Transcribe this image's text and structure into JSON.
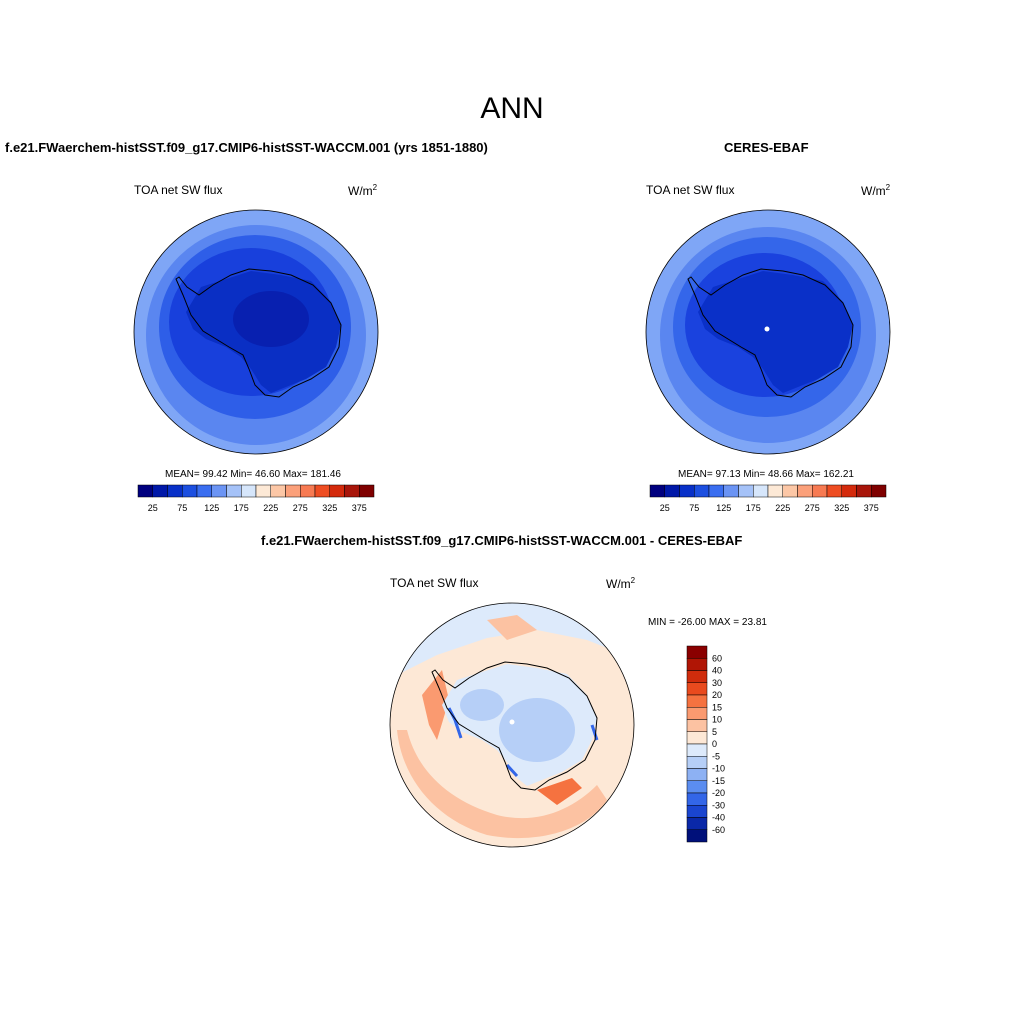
{
  "page": {
    "title": "ANN"
  },
  "panels": [
    {
      "title": "f.e21.FWaerchem-histSST.f09_g17.CMIP6-histSST-WACCM.001 (yrs 1851-1880)",
      "variable": "TOA net SW flux",
      "units": "W/m",
      "units_sup": "2",
      "stats": "MEAN=  99.42  Min=  46.60  Max= 181.46",
      "colorbar": {
        "colors": [
          "#00007f",
          "#0018a8",
          "#0830c8",
          "#1c4fe0",
          "#3a6ef0",
          "#6b94f4",
          "#a5c2f8",
          "#d6e6fb",
          "#fde9d6",
          "#fcc7a6",
          "#fba07a",
          "#f77a52",
          "#ee4d22",
          "#d42a0c",
          "#a8150a",
          "#7f0000"
        ],
        "labels": [
          "25",
          "75",
          "125",
          "175",
          "225",
          "275",
          "325",
          "375"
        ]
      }
    },
    {
      "title": "CERES-EBAF",
      "variable": "TOA net SW flux",
      "units": "W/m",
      "units_sup": "2",
      "stats": "MEAN=  97.13  Min=  48.66  Max= 162.21",
      "colorbar": {
        "colors": [
          "#00007f",
          "#0018a8",
          "#0830c8",
          "#1c4fe0",
          "#3a6ef0",
          "#6b94f4",
          "#a5c2f8",
          "#d6e6fb",
          "#fde9d6",
          "#fcc7a6",
          "#fba07a",
          "#f77a52",
          "#ee4d22",
          "#d42a0c",
          "#a8150a",
          "#7f0000"
        ],
        "labels": [
          "25",
          "75",
          "125",
          "175",
          "225",
          "275",
          "325",
          "375"
        ]
      }
    },
    {
      "title": "f.e21.FWaerchem-histSST.f09_g17.CMIP6-histSST-WACCM.001 - CERES-EBAF",
      "variable": "TOA net SW flux",
      "units": "W/m",
      "units_sup": "2",
      "stats": "MIN = -26.00 MAX =  23.81",
      "colorbar": {
        "colors": [
          "#8a0000",
          "#b01505",
          "#d02c0c",
          "#e94a1e",
          "#f57240",
          "#fa9a70",
          "#fcc2a2",
          "#fde8d6",
          "#ddeafb",
          "#b6cff7",
          "#8db1f3",
          "#5b8df0",
          "#3366e8",
          "#1a45d0",
          "#0a28a8",
          "#00107a"
        ],
        "labels": [
          "60",
          "40",
          "30",
          "20",
          "15",
          "10",
          "5",
          "0",
          "-5",
          "-10",
          "-15",
          "-20",
          "-30",
          "-40",
          "-60"
        ]
      }
    }
  ]
}
